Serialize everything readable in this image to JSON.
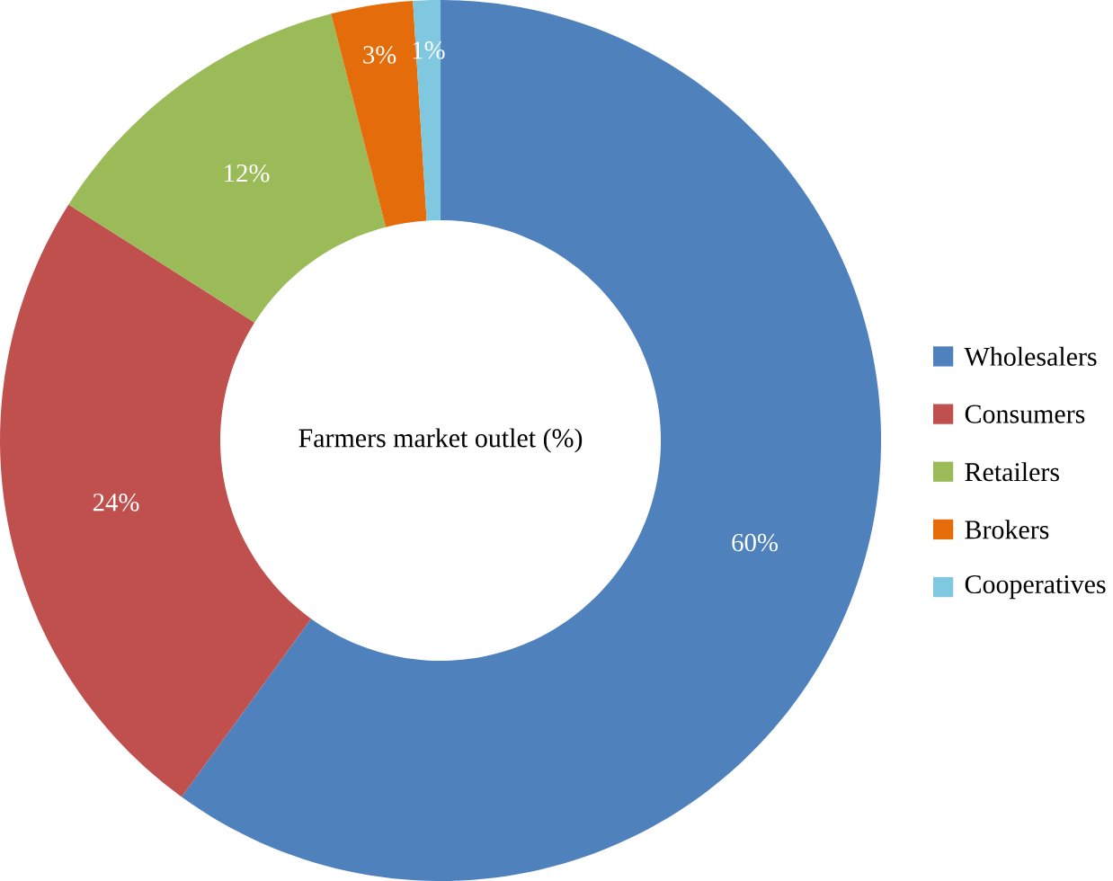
{
  "chart_data": {
    "type": "donut",
    "title": "Farmers market outlet (%)",
    "categories": [
      "Wholesalers",
      "Consumers",
      "Retailers",
      "Brokers",
      "Cooperatives"
    ],
    "values": [
      60,
      24,
      12,
      3,
      1
    ],
    "colors": [
      "#4f81bd",
      "#c0504d",
      "#9bbb59",
      "#e46c0a",
      "#7fc8e0"
    ],
    "value_labels": [
      "60%",
      "24%",
      "12%",
      "3%",
      "1%"
    ],
    "legend": "right"
  }
}
